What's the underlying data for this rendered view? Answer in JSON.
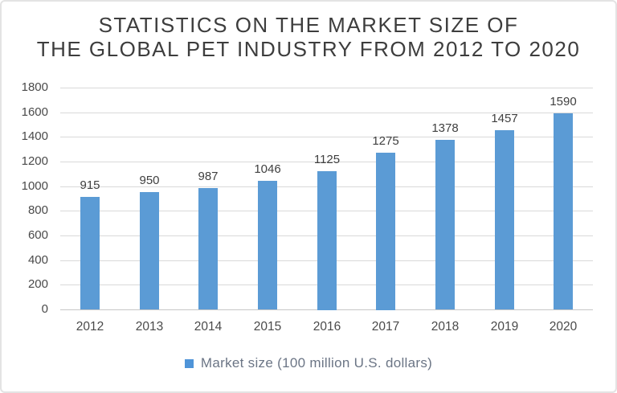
{
  "title": {
    "line1": "STATISTICS ON THE MARKET SIZE OF",
    "line2": "THE GLOBAL PET INDUSTRY FROM 2012 TO 2020"
  },
  "legend": {
    "label": "Market size (100 million U.S. dollars)"
  },
  "colors": {
    "bar": "#5b9bd5",
    "gridline": "#d9d9d9",
    "axis_line": "#c6c6c6",
    "title_text": "#3d3d3d",
    "tick_text": "#4a4a4a",
    "data_label_text": "#3f3f3f",
    "legend_text": "#6b7585",
    "legend_marker": "#4f94d8",
    "frame_border": "#e3e3e3"
  },
  "chart_data": {
    "type": "bar",
    "title": "STATISTICS ON THE MARKET SIZE OF THE GLOBAL PET INDUSTRY FROM 2012 TO 2020",
    "categories": [
      "2012",
      "2013",
      "2014",
      "2015",
      "2016",
      "2017",
      "2018",
      "2019",
      "2020"
    ],
    "series": [
      {
        "name": "Market size (100 million U.S. dollars)",
        "values": [
          915,
          950,
          987,
          1046,
          1125,
          1275,
          1378,
          1457,
          1590
        ]
      }
    ],
    "xlabel": "",
    "ylabel": "",
    "ylim": [
      0,
      1800
    ],
    "ytick_interval": 200,
    "yticks": [
      0,
      200,
      400,
      600,
      800,
      1000,
      1200,
      1400,
      1600,
      1800
    ],
    "grid": true,
    "data_labels": true,
    "legend_position": "bottom"
  }
}
